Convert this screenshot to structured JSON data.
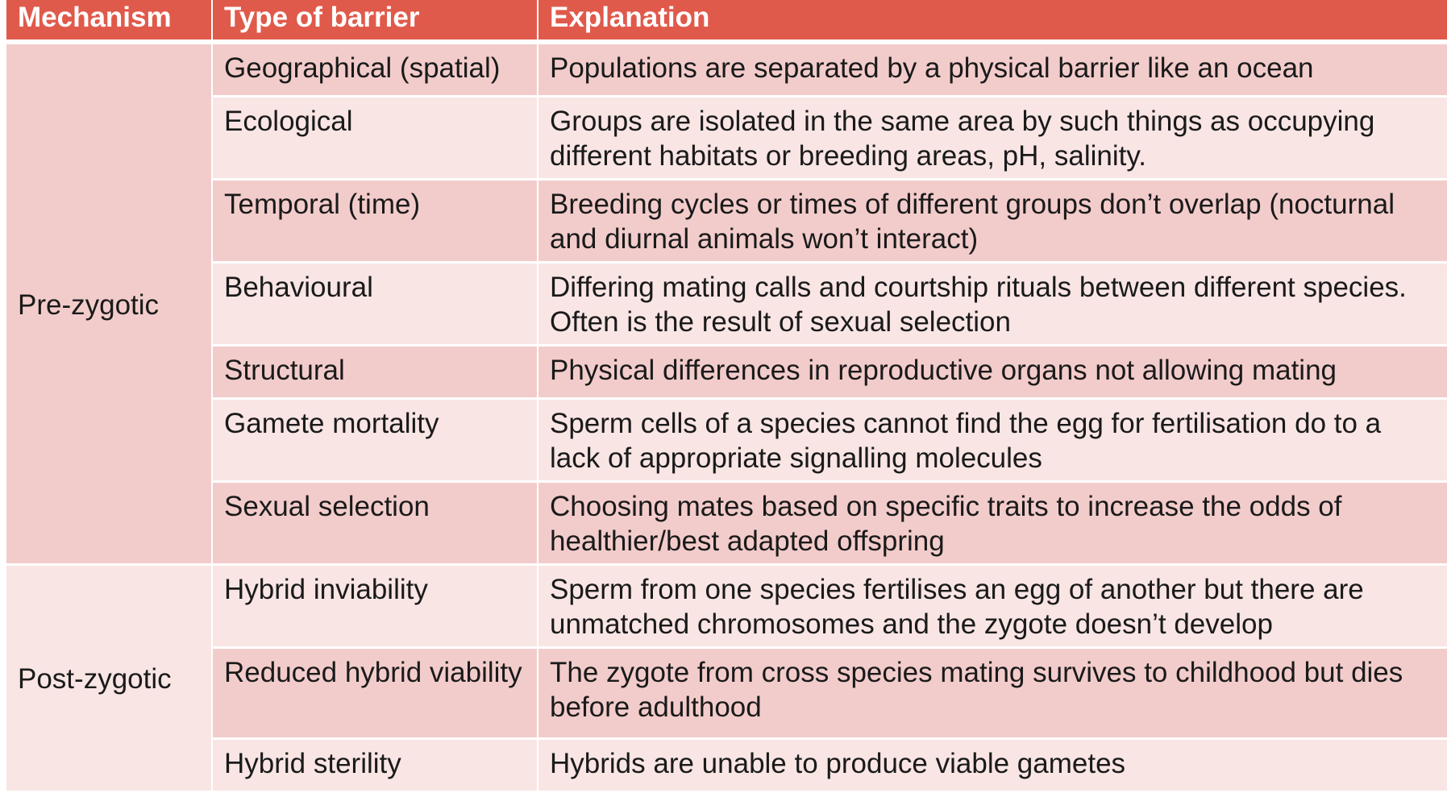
{
  "header": {
    "mechanism": "Mechanism",
    "type_of_barrier": "Type of barrier",
    "explanation": "Explanation"
  },
  "colors": {
    "header_bg": "#e05a4b",
    "row_dark": "#f2cccb",
    "row_light": "#f8e5e4"
  },
  "groups": [
    {
      "mechanism": "Pre-zygotic",
      "rows": [
        {
          "type": "Geographical (spatial)",
          "explanation": "Populations are separated by a physical barrier like an ocean"
        },
        {
          "type": "Ecological",
          "explanation": "Groups are isolated in the same area by such things as occupying different habitats or breeding areas, pH, salinity."
        },
        {
          "type": "Temporal (time)",
          "explanation": "Breeding cycles or times of different groups don’t overlap (nocturnal and diurnal animals won’t interact)"
        },
        {
          "type": "Behavioural",
          "explanation": "Differing mating calls and courtship rituals between different species. Often is the result of sexual selection"
        },
        {
          "type": "Structural",
          "explanation": "Physical differences in reproductive organs not allowing mating"
        },
        {
          "type": "Gamete mortality",
          "explanation": "Sperm cells of a species cannot find the egg for fertilisation do to a lack of appropriate signalling molecules"
        },
        {
          "type": "Sexual selection",
          "explanation": "Choosing mates based on specific traits to increase the odds of healthier/best adapted offspring"
        }
      ]
    },
    {
      "mechanism": "Post-zygotic",
      "rows": [
        {
          "type": "Hybrid inviability",
          "explanation": "Sperm from one species fertilises an egg of another but there are unmatched chromosomes and the zygote doesn’t develop"
        },
        {
          "type": "Reduced hybrid viability",
          "explanation": "The zygote from cross species mating survives to childhood but dies before adulthood"
        },
        {
          "type": "Hybrid sterility",
          "explanation": "Hybrids are unable to produce viable gametes"
        }
      ]
    }
  ]
}
